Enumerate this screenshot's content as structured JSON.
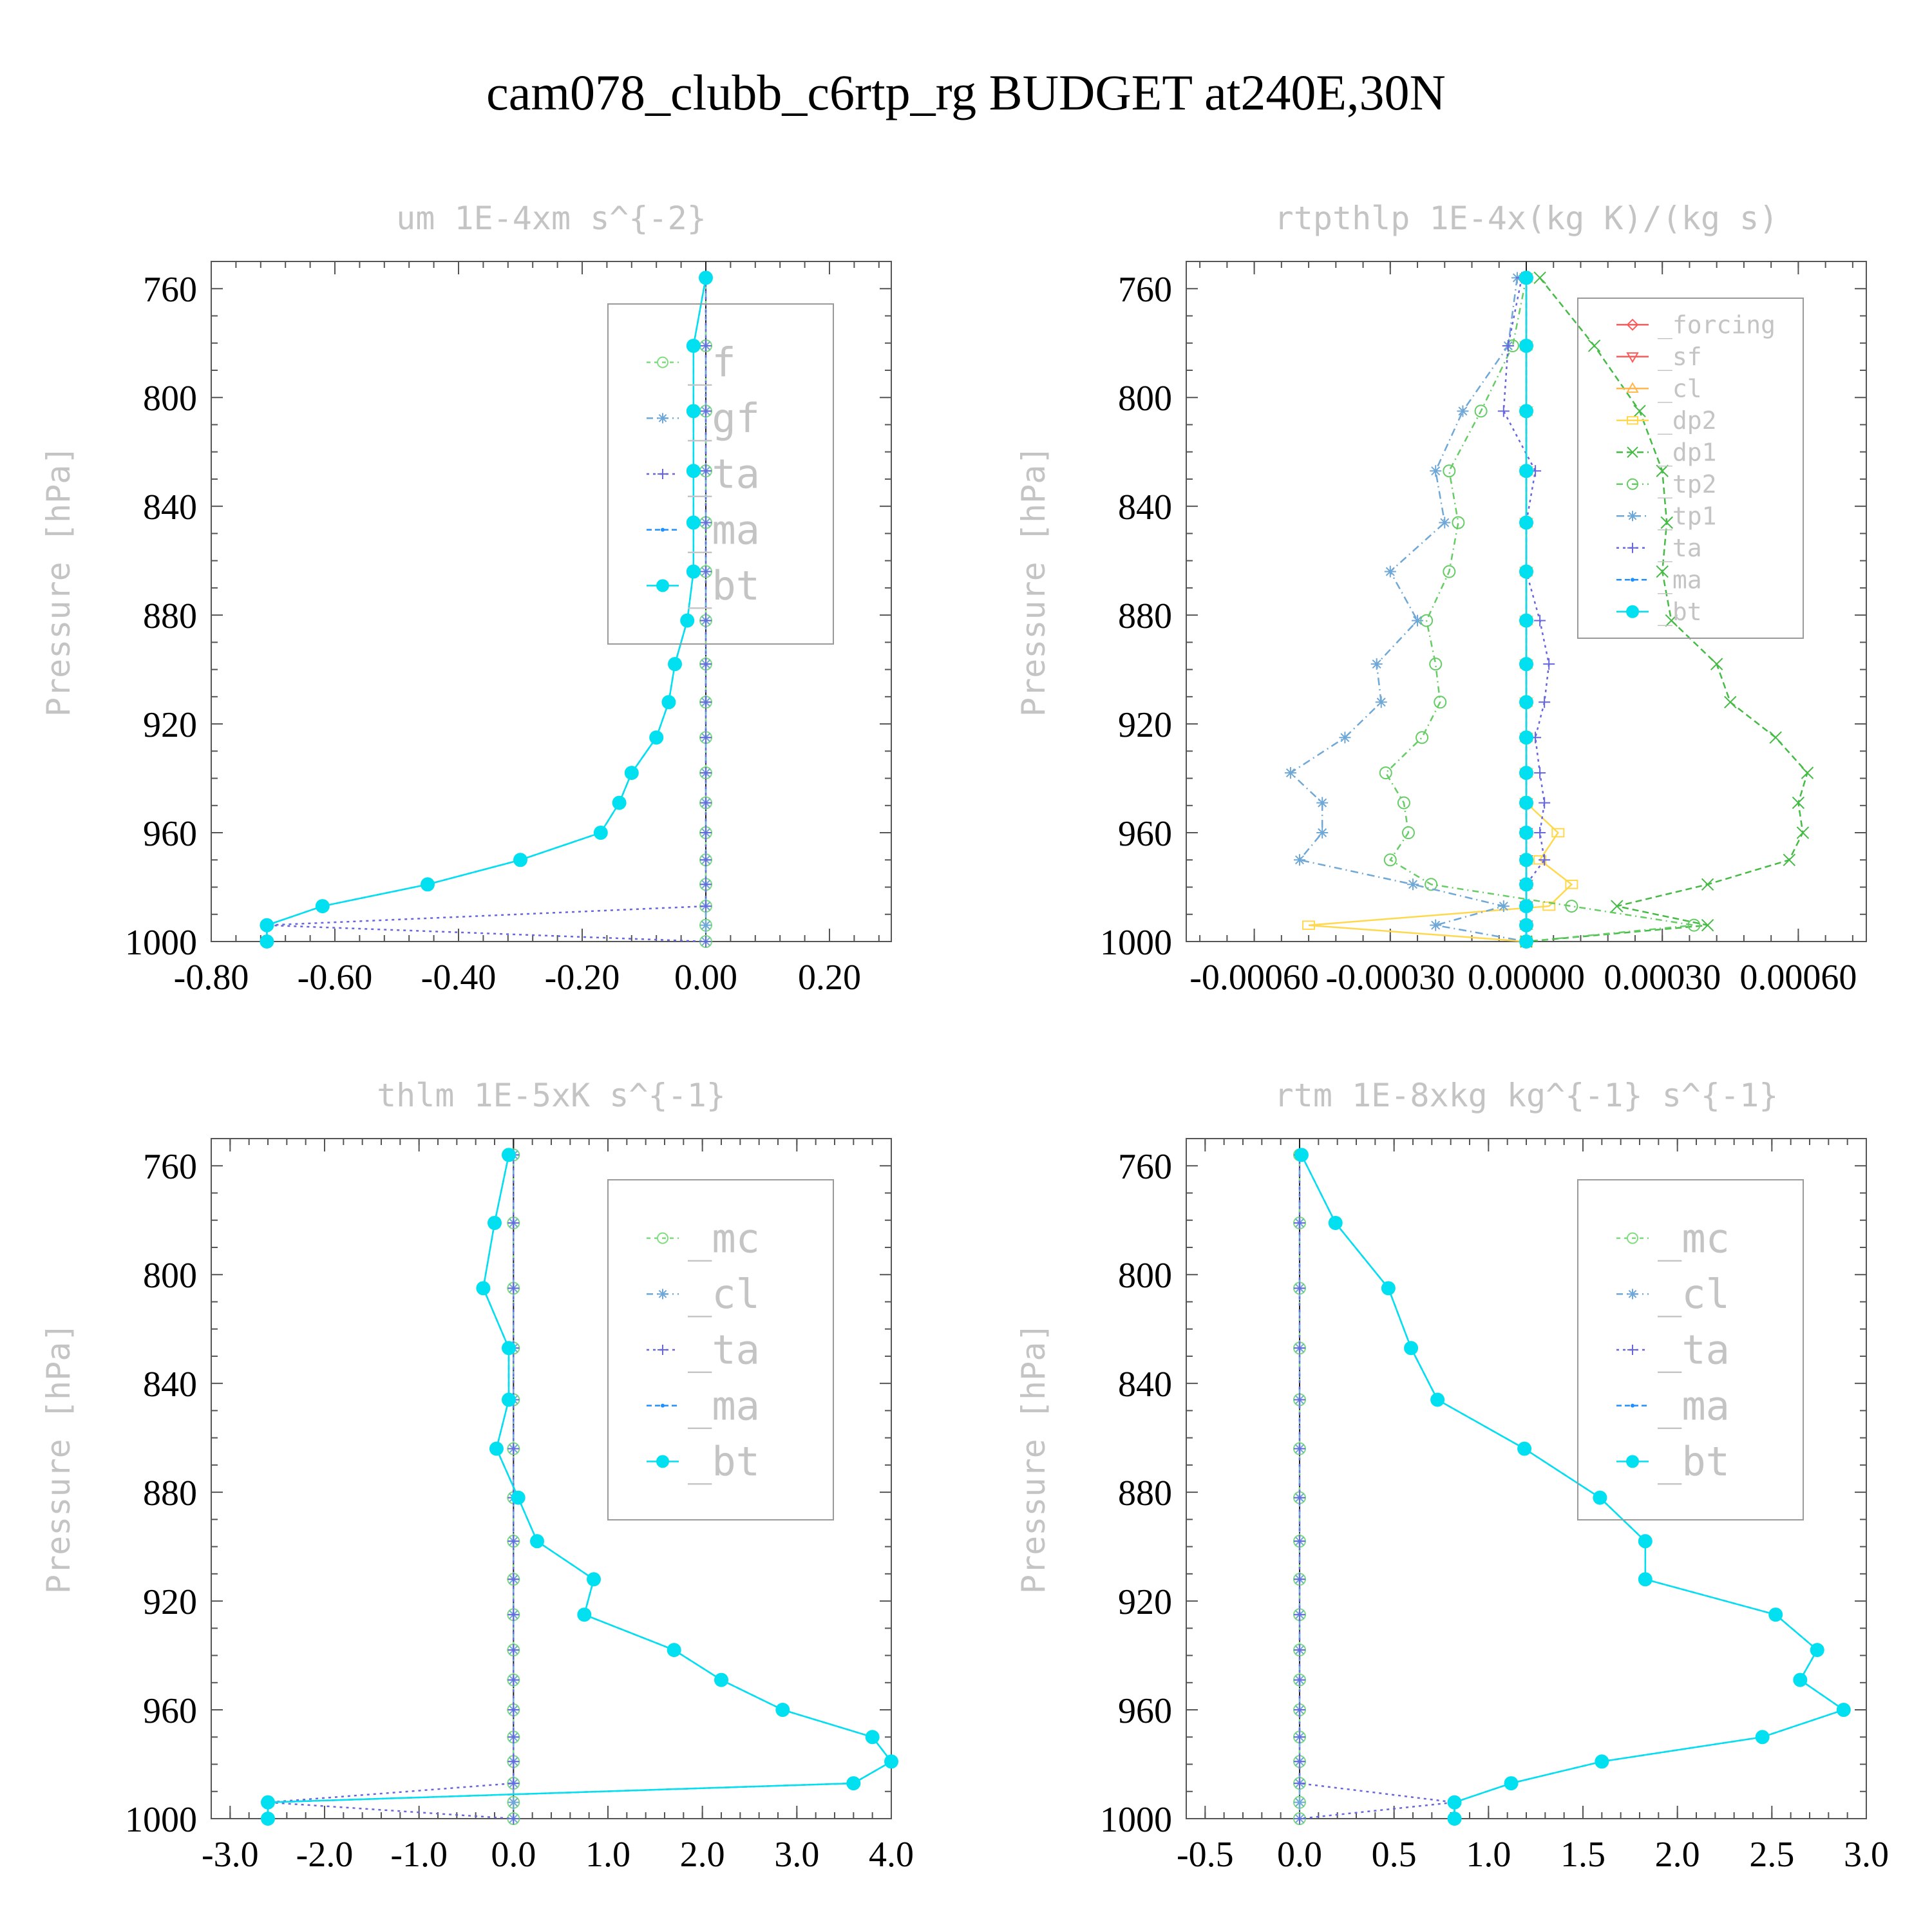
{
  "title": "cam078_clubb_c6rtp_rg  BUDGET at240E,30N",
  "levels": [
    756,
    781,
    805,
    827,
    846,
    864,
    882,
    898,
    912,
    925,
    938,
    949,
    960,
    970,
    979,
    987,
    994,
    1000
  ],
  "chart_data": [
    {
      "type": "line",
      "title": "um  1E-4xm s^{-2}",
      "xlabel": "",
      "ylabel": "Pressure [hPa]",
      "xlim": [
        -0.8,
        0.3
      ],
      "ylim": [
        1000,
        750
      ],
      "xticks": [
        "-0.80",
        "-0.60",
        "-0.40",
        "-0.20",
        "0.00",
        "0.20"
      ],
      "xtick_values": [
        -0.8,
        -0.6,
        -0.4,
        -0.2,
        0.0,
        0.2
      ],
      "yticks": [
        "760",
        "800",
        "840",
        "880",
        "920",
        "960",
        "1000"
      ],
      "ytick_values": [
        760,
        800,
        840,
        880,
        920,
        960,
        1000
      ],
      "legend_position": "top-right",
      "series": [
        {
          "name": "_f",
          "color": "#7fdc7f",
          "marker": "circle",
          "dash": "6,6",
          "values": [
            0,
            0,
            0,
            0,
            0,
            0,
            0,
            0,
            0,
            0,
            0,
            0,
            0,
            0,
            0,
            0,
            0,
            0
          ]
        },
        {
          "name": "_gf",
          "color": "#6fa8d6",
          "marker": "asterisk",
          "dash": "10,6,2,6",
          "values": [
            0,
            0,
            0,
            0,
            0,
            0,
            0,
            0,
            0,
            0,
            0,
            0,
            0,
            0,
            0,
            0,
            0,
            0
          ]
        },
        {
          "name": "_ta",
          "color": "#6666dd",
          "marker": "plus",
          "dash": "4,6",
          "values": [
            0,
            0,
            0,
            0,
            0,
            0,
            0,
            0,
            0,
            0,
            0,
            0,
            0,
            0,
            0,
            0,
            -0.71,
            0
          ]
        },
        {
          "name": "_ma",
          "color": "#1e90ff",
          "marker": "dot",
          "dash": "8,5",
          "values": [
            0.0,
            -0.02,
            -0.02,
            -0.02,
            -0.02,
            -0.02,
            -0.03,
            -0.05,
            -0.06,
            -0.08,
            -0.12,
            -0.14,
            -0.17,
            -0.3,
            -0.45,
            -0.62,
            -0.71,
            -0.71
          ]
        },
        {
          "name": "_bt",
          "color": "#00e0f0",
          "marker": "filled",
          "dash": "",
          "values": [
            0.0,
            -0.02,
            -0.02,
            -0.02,
            -0.02,
            -0.02,
            -0.03,
            -0.05,
            -0.06,
            -0.08,
            -0.12,
            -0.14,
            -0.17,
            -0.3,
            -0.45,
            -0.62,
            -0.71,
            -0.71
          ]
        }
      ]
    },
    {
      "type": "line",
      "title": "rtpthlp  1E-4x(kg K)/(kg s)",
      "xlabel": "",
      "ylabel": "Pressure [hPa]",
      "xlim": [
        -0.00075,
        0.00075
      ],
      "ylim": [
        1000,
        750
      ],
      "xticks": [
        "-0.00060",
        "-0.00030",
        "0.00000",
        "0.00030",
        "0.00060"
      ],
      "xtick_values": [
        -0.0006,
        -0.0003,
        0.0,
        0.0003,
        0.0006
      ],
      "yticks": [
        "760",
        "800",
        "840",
        "880",
        "920",
        "960",
        "1000"
      ],
      "ytick_values": [
        760,
        800,
        840,
        880,
        920,
        960,
        1000
      ],
      "legend_position": "top-right",
      "series": [
        {
          "name": "_forcing",
          "color": "#ff5a5a",
          "marker": "diamond",
          "dash": "",
          "values": [
            0,
            0,
            0,
            0,
            0,
            0,
            0,
            0,
            0,
            0,
            0,
            0,
            0,
            0,
            0,
            0,
            0,
            0
          ]
        },
        {
          "name": "_sf",
          "color": "#ff5a5a",
          "marker": "triangle-down",
          "dash": "",
          "values": [
            0,
            0,
            0,
            0,
            0,
            0,
            0,
            0,
            0,
            0,
            0,
            0,
            0,
            0,
            0,
            0,
            0,
            0
          ]
        },
        {
          "name": "_cl",
          "color": "#ffb64d",
          "marker": "triangle-up",
          "dash": "",
          "values": [
            0,
            0,
            0,
            0,
            0,
            0,
            0,
            0,
            0,
            0,
            0,
            0,
            0,
            0,
            0,
            0,
            0,
            0
          ]
        },
        {
          "name": "_dp2",
          "color": "#ffd84d",
          "marker": "square",
          "dash": "",
          "values": [
            0,
            0,
            0,
            0,
            0,
            0,
            0,
            0,
            0,
            0,
            0,
            0,
            7e-05,
            3e-05,
            0.0001,
            5e-05,
            -0.00048,
            0
          ]
        },
        {
          "name": "_dp1",
          "color": "#44bb44",
          "marker": "x",
          "dash": "10,6",
          "values": [
            3e-05,
            0.00015,
            0.00025,
            0.0003,
            0.00031,
            0.0003,
            0.00032,
            0.00042,
            0.00045,
            0.00055,
            0.00062,
            0.0006,
            0.00061,
            0.00058,
            0.0004,
            0.0002,
            0.0004,
            0.0
          ]
        },
        {
          "name": "_tp2",
          "color": "#66cc66",
          "marker": "circle",
          "dash": "10,6,2,6",
          "values": [
            0.0,
            -3e-05,
            -0.0001,
            -0.00017,
            -0.00015,
            -0.00017,
            -0.00022,
            -0.0002,
            -0.00019,
            -0.00023,
            -0.00031,
            -0.00027,
            -0.00026,
            -0.0003,
            -0.00021,
            0.0001,
            0.00037,
            0.0
          ]
        },
        {
          "name": "_tp1",
          "color": "#6fa8d6",
          "marker": "asterisk",
          "dash": "12,6,2,6",
          "values": [
            -2e-05,
            -4e-05,
            -0.00014,
            -0.0002,
            -0.00018,
            -0.0003,
            -0.00024,
            -0.00033,
            -0.00032,
            -0.0004,
            -0.00052,
            -0.00045,
            -0.00045,
            -0.0005,
            -0.00025,
            -5e-05,
            -0.0002,
            0.0
          ]
        },
        {
          "name": "_ta",
          "color": "#6666dd",
          "marker": "plus",
          "dash": "4,6",
          "values": [
            -1e-05,
            -4e-05,
            -5e-05,
            2e-05,
            0.0,
            0.0,
            3e-05,
            5e-05,
            4e-05,
            2e-05,
            3e-05,
            4e-05,
            3e-05,
            4e-05,
            0.0,
            0.0,
            0.0,
            0.0
          ]
        },
        {
          "name": "_ma",
          "color": "#1e90ff",
          "marker": "dot",
          "dash": "8,5",
          "values": [
            0,
            0,
            0,
            0,
            0,
            0,
            0,
            0,
            0,
            0,
            0,
            0,
            0,
            0,
            0,
            0,
            0,
            0
          ]
        },
        {
          "name": "_bt",
          "color": "#00e0f0",
          "marker": "filled",
          "dash": "",
          "values": [
            0,
            0,
            0,
            0,
            0,
            0,
            0,
            0,
            0,
            0,
            0,
            0,
            0,
            0,
            0,
            0,
            0,
            0
          ]
        }
      ]
    },
    {
      "type": "line",
      "title": "thlm  1E-5xK s^{-1}",
      "xlabel": "",
      "ylabel": "Pressure [hPa]",
      "xlim": [
        -3.2,
        4.0
      ],
      "ylim": [
        1000,
        750
      ],
      "xticks": [
        "-3.0",
        "-2.0",
        "-1.0",
        "0.0",
        "1.0",
        "2.0",
        "3.0",
        "4.0"
      ],
      "xtick_values": [
        -3,
        -2,
        -1,
        0,
        1,
        2,
        3,
        4
      ],
      "yticks": [
        "760",
        "800",
        "840",
        "880",
        "920",
        "960",
        "1000"
      ],
      "ytick_values": [
        760,
        800,
        840,
        880,
        920,
        960,
        1000
      ],
      "legend_position": "top-right",
      "series": [
        {
          "name": "_mc",
          "color": "#7fdc7f",
          "marker": "circle",
          "dash": "6,6",
          "values": [
            0,
            0,
            0,
            0,
            0,
            0,
            0,
            0,
            0,
            0,
            0,
            0,
            0,
            0,
            0,
            0,
            0,
            0
          ]
        },
        {
          "name": "_cl",
          "color": "#6fa8d6",
          "marker": "asterisk",
          "dash": "10,6,2,6",
          "values": [
            0,
            0,
            0,
            0,
            0,
            0,
            0,
            0,
            0,
            0,
            0,
            0,
            0,
            0,
            0,
            0,
            0,
            0
          ]
        },
        {
          "name": "_ta",
          "color": "#6666dd",
          "marker": "plus",
          "dash": "4,6",
          "values": [
            0,
            0,
            0,
            0,
            0,
            0,
            0,
            0,
            0,
            0,
            0,
            0,
            0,
            0,
            0,
            0,
            -2.6,
            0
          ]
        },
        {
          "name": "_ma",
          "color": "#1e90ff",
          "marker": "dot",
          "dash": "8,5",
          "values": [
            -0.05,
            -0.2,
            -0.32,
            -0.05,
            -0.05,
            -0.18,
            0.05,
            0.25,
            0.85,
            0.75,
            1.7,
            2.2,
            2.85,
            3.8,
            4.0,
            3.6,
            -2.6,
            -2.6
          ]
        },
        {
          "name": "_bt",
          "color": "#00e0f0",
          "marker": "filled",
          "dash": "",
          "values": [
            -0.05,
            -0.2,
            -0.32,
            -0.05,
            -0.05,
            -0.18,
            0.05,
            0.25,
            0.85,
            0.75,
            1.7,
            2.2,
            2.85,
            3.8,
            4.0,
            3.6,
            -2.6,
            -2.6
          ]
        }
      ]
    },
    {
      "type": "line",
      "title": "rtm  1E-8xkg kg^{-1} s^{-1}",
      "xlabel": "",
      "ylabel": "Pressure [hPa]",
      "xlim": [
        -0.6,
        3.0
      ],
      "ylim": [
        1000,
        750
      ],
      "xticks": [
        "-0.5",
        "0.0",
        "0.5",
        "1.0",
        "1.5",
        "2.0",
        "2.5",
        "3.0"
      ],
      "xtick_values": [
        -0.5,
        0,
        0.5,
        1,
        1.5,
        2,
        2.5,
        3
      ],
      "yticks": [
        "760",
        "800",
        "840",
        "880",
        "920",
        "960",
        "1000"
      ],
      "ytick_values": [
        760,
        800,
        840,
        880,
        920,
        960,
        1000
      ],
      "legend_position": "top-right",
      "series": [
        {
          "name": "_mc",
          "color": "#7fdc7f",
          "marker": "circle",
          "dash": "6,6",
          "values": [
            0,
            0,
            0,
            0,
            0,
            0,
            0,
            0,
            0,
            0,
            0,
            0,
            0,
            0,
            0,
            0,
            0,
            0
          ]
        },
        {
          "name": "_cl",
          "color": "#6fa8d6",
          "marker": "asterisk",
          "dash": "10,6,2,6",
          "values": [
            0,
            0,
            0,
            0,
            0,
            0,
            0,
            0,
            0,
            0,
            0,
            0,
            0,
            0,
            0,
            0,
            0,
            0
          ]
        },
        {
          "name": "_ta",
          "color": "#6666dd",
          "marker": "plus",
          "dash": "4,6",
          "values": [
            0,
            0,
            0,
            0,
            0,
            0,
            0,
            0,
            0,
            0,
            0,
            0,
            0,
            0,
            0,
            0,
            0.82,
            0
          ]
        },
        {
          "name": "_ma",
          "color": "#1e90ff",
          "marker": "dot",
          "dash": "8,5",
          "values": [
            0.01,
            0.19,
            0.47,
            0.59,
            0.73,
            1.19,
            1.59,
            1.83,
            1.83,
            2.52,
            2.74,
            2.65,
            2.88,
            2.45,
            1.6,
            1.12,
            0.82,
            0.82
          ]
        },
        {
          "name": "_bt",
          "color": "#00e0f0",
          "marker": "filled",
          "dash": "",
          "values": [
            0.01,
            0.19,
            0.47,
            0.59,
            0.73,
            1.19,
            1.59,
            1.83,
            1.83,
            2.52,
            2.74,
            2.65,
            2.88,
            2.45,
            1.6,
            1.12,
            0.82,
            0.82
          ]
        }
      ]
    }
  ]
}
